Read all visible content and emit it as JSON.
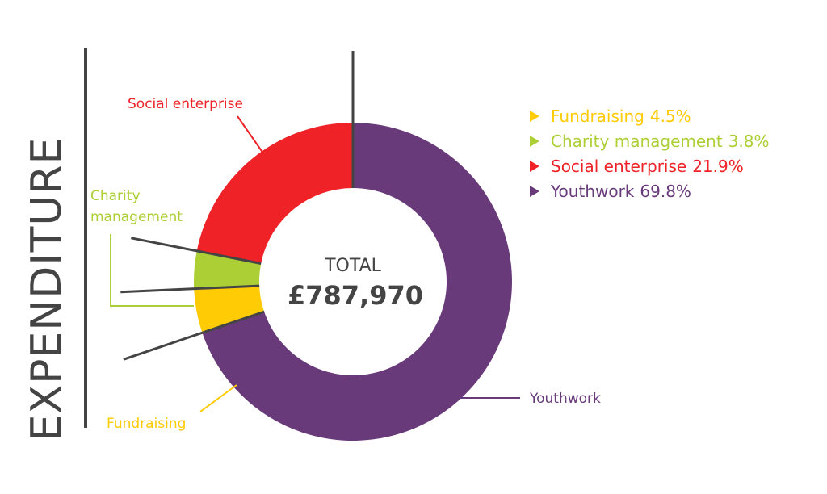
{
  "side_title": "EXPENDITURE",
  "center": {
    "label": "TOTAL",
    "value": "£787,970"
  },
  "colors": {
    "fundraising": "#FFCB05",
    "charity_management": "#ADCF36",
    "social_enterprise": "#EE2227",
    "youthwork": "#683A7A",
    "leader_line": "#444444",
    "center_text": "#444444"
  },
  "legend": [
    {
      "label": "Fundraising",
      "pct": "4.5%",
      "color": "#FFCB05"
    },
    {
      "label": "Charity management",
      "pct": "3.8%",
      "color": "#ADCF36"
    },
    {
      "label": "Social enterprise",
      "pct": "21.9%",
      "color": "#EE2227"
    },
    {
      "label": "Youthwork",
      "pct": "69.8%",
      "color": "#683A7A"
    }
  ],
  "chart_data": {
    "type": "pie",
    "title": "EXPENDITURE",
    "total": 787970,
    "total_label": "£787,970",
    "order": "clockwise from top",
    "slices": [
      {
        "label": "Youthwork",
        "value": 69.8,
        "color": "#683A7A"
      },
      {
        "label": "Fundraising",
        "value": 4.5,
        "color": "#FFCB05"
      },
      {
        "label": "Charity management",
        "value": 3.8,
        "color": "#ADCF36"
      },
      {
        "label": "Social enterprise",
        "value": 21.9,
        "color": "#EE2227"
      }
    ],
    "callouts": {
      "Social enterprise": "Social enterprise",
      "Charity management": [
        "Charity",
        "management"
      ],
      "Fundraising": "Fundraising",
      "Youthwork": "Youthwork"
    },
    "legend_placement": "right"
  }
}
